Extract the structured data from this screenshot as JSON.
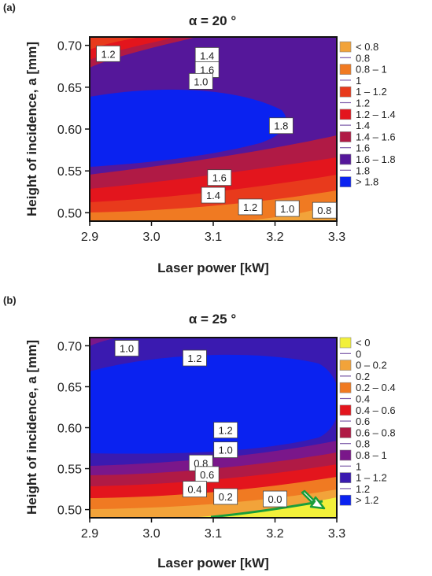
{
  "chart_data": [
    {
      "panel_label": "(a)",
      "type": "contour",
      "title": "α = 20 °",
      "xlabel": "Laser power [kW]",
      "ylabel": "Height of incidence, a [mm]",
      "xlim": [
        2.9,
        3.3
      ],
      "ylim": [
        0.49,
        0.71
      ],
      "x_ticks": [
        "2.9",
        "3.0",
        "3.1",
        "3.2",
        "3.3"
      ],
      "y_ticks": [
        "0.50",
        "0.55",
        "0.60",
        "0.65",
        "0.70"
      ],
      "legend": [
        {
          "label": "< 0.8",
          "color": "#f2a33a"
        },
        {
          "label": "0.8",
          "color": null
        },
        {
          "label": "0.8 – 1",
          "color": "#f07a22"
        },
        {
          "label": "1",
          "color": null
        },
        {
          "label": "1 – 1.2",
          "color": "#e83a1c"
        },
        {
          "label": "1.2",
          "color": null
        },
        {
          "label": "1.2 – 1.4",
          "color": "#e3151d"
        },
        {
          "label": "1.4",
          "color": null
        },
        {
          "label": "1.4 – 1.6",
          "color": "#b01a45"
        },
        {
          "label": "1.6",
          "color": null
        },
        {
          "label": "1.6 – 1.8",
          "color": "#55179a"
        },
        {
          "label": "1.8",
          "color": null
        },
        {
          "label": "> 1.8",
          "color": "#0a22f0"
        }
      ],
      "contour_labels": [
        {
          "text": "1.2",
          "x": 2.93,
          "y": 0.69
        },
        {
          "text": "1.4",
          "x": 3.09,
          "y": 0.688
        },
        {
          "text": "1.6",
          "x": 3.09,
          "y": 0.671
        },
        {
          "text": "1.0",
          "x": 3.08,
          "y": 0.657
        },
        {
          "text": "1.8",
          "x": 3.21,
          "y": 0.604
        },
        {
          "text": "1.6",
          "x": 3.11,
          "y": 0.542
        },
        {
          "text": "1.4",
          "x": 3.1,
          "y": 0.521
        },
        {
          "text": "1.2",
          "x": 3.16,
          "y": 0.507
        },
        {
          "text": "1.0",
          "x": 3.22,
          "y": 0.505
        },
        {
          "text": "0.8",
          "x": 3.28,
          "y": 0.503
        }
      ]
    },
    {
      "panel_label": "(b)",
      "type": "contour",
      "title": "α = 25 °",
      "xlabel": "Laser power [kW]",
      "ylabel": "Height of incidence, a [mm]",
      "xlim": [
        2.9,
        3.3
      ],
      "ylim": [
        0.49,
        0.71
      ],
      "x_ticks": [
        "2.9",
        "3.0",
        "3.1",
        "3.2",
        "3.3"
      ],
      "y_ticks": [
        "0.50",
        "0.55",
        "0.60",
        "0.65",
        "0.70"
      ],
      "legend": [
        {
          "label": "< 0",
          "color": "#f2f03a"
        },
        {
          "label": "0",
          "color": null
        },
        {
          "label": "0 – 0.2",
          "color": "#f2a33a"
        },
        {
          "label": "0.2",
          "color": null
        },
        {
          "label": "0.2 – 0.4",
          "color": "#f07a22"
        },
        {
          "label": "0.4",
          "color": null
        },
        {
          "label": "0.4 – 0.6",
          "color": "#e3151d"
        },
        {
          "label": "0.6",
          "color": null
        },
        {
          "label": "0.6 – 0.8",
          "color": "#b01a45"
        },
        {
          "label": "0.8",
          "color": null
        },
        {
          "label": "0.8 – 1",
          "color": "#7a178a"
        },
        {
          "label": "1",
          "color": null
        },
        {
          "label": "1 – 1.2",
          "color": "#3a1ab0"
        },
        {
          "label": "1.2",
          "color": null
        },
        {
          "label": "> 1.2",
          "color": "#0a22f0"
        }
      ],
      "contour_labels": [
        {
          "text": "1.0",
          "x": 2.96,
          "y": 0.697
        },
        {
          "text": "1.2",
          "x": 3.07,
          "y": 0.685
        },
        {
          "text": "1.2",
          "x": 3.12,
          "y": 0.597
        },
        {
          "text": "1.0",
          "x": 3.12,
          "y": 0.573
        },
        {
          "text": "0.8",
          "x": 3.08,
          "y": 0.557
        },
        {
          "text": "0.6",
          "x": 3.09,
          "y": 0.543
        },
        {
          "text": "0.4",
          "x": 3.07,
          "y": 0.525
        },
        {
          "text": "0.2",
          "x": 3.12,
          "y": 0.516
        },
        {
          "text": "0.0",
          "x": 3.2,
          "y": 0.513
        }
      ]
    }
  ]
}
